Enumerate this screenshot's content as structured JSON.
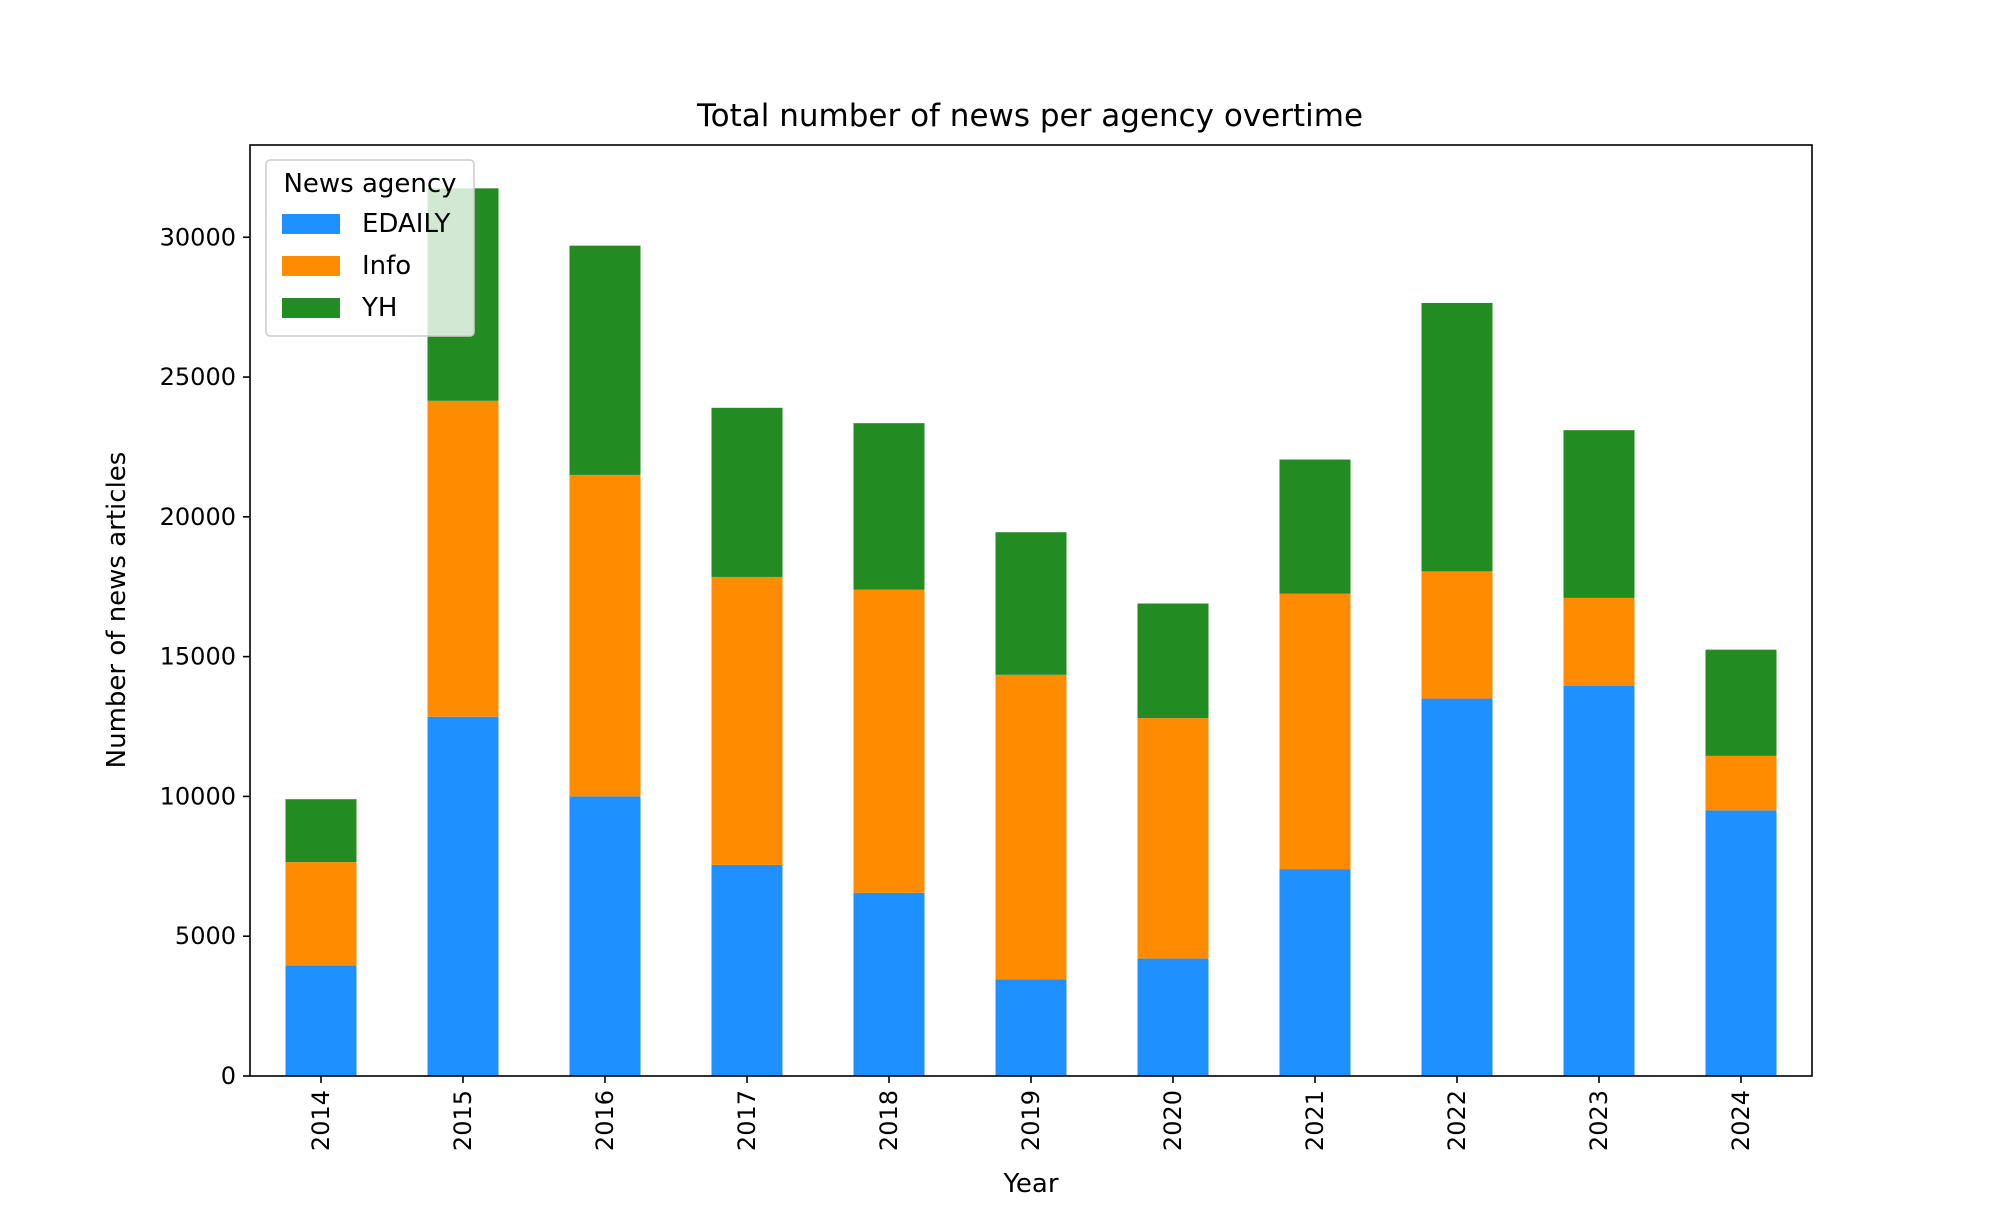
{
  "chart_data": {
    "type": "bar",
    "stacked": true,
    "title": "Total number of news per agency overtime",
    "xlabel": "Year",
    "ylabel": "Number of news articles",
    "categories": [
      "2014",
      "2015",
      "2016",
      "2017",
      "2018",
      "2019",
      "2020",
      "2021",
      "2022",
      "2023",
      "2024"
    ],
    "series": [
      {
        "name": "EDAILY",
        "color": "#1e90ff",
        "values": [
          3950,
          12850,
          10000,
          7550,
          6550,
          3450,
          4200,
          7400,
          13500,
          13950,
          9500
        ]
      },
      {
        "name": "Info",
        "color": "#ff8c00",
        "values": [
          3700,
          11300,
          11500,
          10300,
          10850,
          10900,
          8600,
          9850,
          4550,
          3150,
          1950
        ]
      },
      {
        "name": "YH",
        "color": "#228b22",
        "values": [
          2250,
          7600,
          8200,
          6050,
          5950,
          5100,
          4100,
          4800,
          9600,
          6000,
          3800
        ]
      }
    ],
    "ylim": [
      0,
      33300
    ],
    "yticks": [
      0,
      5000,
      10000,
      15000,
      20000,
      25000,
      30000
    ],
    "grid": false,
    "legend": {
      "title": "News agency",
      "position": "top-left"
    }
  }
}
